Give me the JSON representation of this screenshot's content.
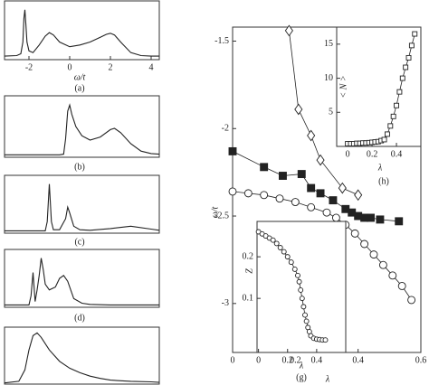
{
  "chart_data": [
    {
      "type": "line",
      "caption": "(a)",
      "xlabel": "ω/t",
      "xlim": [
        -3.2,
        4.4
      ],
      "ylim": [
        0,
        1
      ],
      "xticks": [
        -2,
        0,
        2,
        4
      ],
      "color": "#222",
      "x": [
        -3.2,
        -2.6,
        -2.4,
        -2.3,
        -2.25,
        -2.2,
        -2.15,
        -2.1,
        -2.0,
        -1.8,
        -1.5,
        -1.2,
        -1.0,
        -0.8,
        -0.5,
        0,
        0.5,
        1.0,
        1.5,
        1.8,
        2.0,
        2.2,
        2.5,
        3,
        3.5,
        4,
        4.4
      ],
      "values": [
        0.06,
        0.07,
        0.1,
        0.3,
        0.7,
        0.85,
        0.6,
        0.3,
        0.15,
        0.12,
        0.25,
        0.4,
        0.46,
        0.42,
        0.3,
        0.22,
        0.25,
        0.3,
        0.38,
        0.43,
        0.45,
        0.42,
        0.3,
        0.12,
        0.07,
        0.06,
        0.06
      ]
    },
    {
      "type": "line",
      "caption": "(b)",
      "xlim": [
        -3.2,
        4.4
      ],
      "ylim": [
        0,
        1
      ],
      "color": "#222",
      "x": [
        -3.2,
        -0.5,
        -0.3,
        -0.2,
        -0.1,
        0,
        0.1,
        0.3,
        0.6,
        1.0,
        1.5,
        2.0,
        2.2,
        2.5,
        3.0,
        3.5,
        4.0,
        4.4
      ],
      "values": [
        0.04,
        0.04,
        0.05,
        0.3,
        0.75,
        0.85,
        0.7,
        0.5,
        0.35,
        0.28,
        0.33,
        0.45,
        0.47,
        0.4,
        0.22,
        0.1,
        0.06,
        0.05
      ]
    },
    {
      "type": "line",
      "caption": "(c)",
      "xlim": [
        -3.2,
        4.4
      ],
      "ylim": [
        0,
        1
      ],
      "color": "#222",
      "x": [
        -3.2,
        -1.2,
        -1.1,
        -1.0,
        -0.9,
        -0.8,
        -0.5,
        -0.2,
        -0.1,
        0,
        0.2,
        0.5,
        1.0,
        2,
        3,
        4,
        4.4
      ],
      "values": [
        0.04,
        0.04,
        0.2,
        0.85,
        0.2,
        0.06,
        0.06,
        0.25,
        0.45,
        0.35,
        0.12,
        0.06,
        0.05,
        0.08,
        0.12,
        0.07,
        0.05
      ]
    },
    {
      "type": "line",
      "caption": "(d)",
      "xlim": [
        -3.2,
        4.4
      ],
      "ylim": [
        0,
        1
      ],
      "color": "#222",
      "x": [
        -3.2,
        -2.0,
        -1.9,
        -1.8,
        -1.7,
        -1.6,
        -1.5,
        -1.4,
        -1.3,
        -1.2,
        -1.0,
        -0.7,
        -0.5,
        -0.3,
        -0.1,
        0.2,
        0.6,
        1,
        2,
        3,
        4.4
      ],
      "values": [
        0.04,
        0.04,
        0.2,
        0.6,
        0.1,
        0.3,
        0.55,
        0.85,
        0.65,
        0.4,
        0.3,
        0.35,
        0.5,
        0.55,
        0.45,
        0.15,
        0.07,
        0.05,
        0.04,
        0.04,
        0.04
      ]
    },
    {
      "type": "line",
      "xlim": [
        -3.2,
        4.4
      ],
      "ylim": [
        0,
        1
      ],
      "color": "#222",
      "x": [
        -3.2,
        -2.5,
        -2.2,
        -2.0,
        -1.8,
        -1.6,
        -1.4,
        -1.0,
        -0.5,
        0,
        0.5,
        1,
        1.5,
        2,
        3,
        4,
        4.4
      ],
      "values": [
        0.02,
        0.05,
        0.25,
        0.6,
        0.85,
        0.9,
        0.82,
        0.6,
        0.4,
        0.28,
        0.2,
        0.14,
        0.1,
        0.07,
        0.05,
        0.04,
        0.03
      ]
    },
    {
      "type": "scatter",
      "xlabel": "λ",
      "ylabel": "ω/t",
      "xlim": [
        0,
        0.6
      ],
      "ylim": [
        -3.28,
        -1.42
      ],
      "xticks": [
        0,
        0.2,
        0.4,
        0.6
      ],
      "yticks": [
        -1.5,
        -2,
        -2.5,
        -3
      ],
      "series": [
        {
          "marker": "diamond",
          "filled": false,
          "color": "#222",
          "x": [
            0.18,
            0.21,
            0.25,
            0.28,
            0.35,
            0.4
          ],
          "values": [
            -1.44,
            -1.89,
            -2.04,
            -2.18,
            -2.34,
            -2.38
          ]
        },
        {
          "marker": "square",
          "filled": true,
          "color": "#222",
          "x": [
            0,
            0.1,
            0.16,
            0.22,
            0.25,
            0.28,
            0.32,
            0.36,
            0.38,
            0.4,
            0.42,
            0.44,
            0.47,
            0.53
          ],
          "values": [
            -2.13,
            -2.22,
            -2.27,
            -2.26,
            -2.34,
            -2.37,
            -2.41,
            -2.46,
            -2.48,
            -2.5,
            -2.51,
            -2.51,
            -2.52,
            -2.53
          ]
        },
        {
          "marker": "circle",
          "filled": false,
          "color": "#222",
          "x": [
            0,
            0.05,
            0.1,
            0.15,
            0.2,
            0.25,
            0.3,
            0.33,
            0.36,
            0.39,
            0.42,
            0.45,
            0.48,
            0.51,
            0.54,
            0.57
          ],
          "values": [
            -2.36,
            -2.37,
            -2.38,
            -2.4,
            -2.42,
            -2.45,
            -2.48,
            -2.51,
            -2.55,
            -2.6,
            -2.66,
            -2.72,
            -2.78,
            -2.84,
            -2.9,
            -2.98
          ]
        }
      ]
    },
    {
      "type": "scatter",
      "caption": "(h)",
      "xlabel": "λ",
      "ylabel": "< N >",
      "xlim": [
        -0.09,
        0.6
      ],
      "ylim": [
        0,
        17.5
      ],
      "xticks": [
        0,
        0.2,
        0.4
      ],
      "yticks": [
        5,
        10,
        15
      ],
      "series": [
        {
          "marker": "square",
          "filled": false,
          "color": "#222",
          "x": [
            0,
            0.025,
            0.05,
            0.075,
            0.1,
            0.125,
            0.15,
            0.175,
            0.2,
            0.225,
            0.25,
            0.275,
            0.3,
            0.325,
            0.35,
            0.375,
            0.4,
            0.425,
            0.45,
            0.475,
            0.5,
            0.525,
            0.55
          ],
          "values": [
            0.4,
            0.4,
            0.4,
            0.45,
            0.45,
            0.5,
            0.5,
            0.55,
            0.6,
            0.65,
            0.7,
            0.85,
            1,
            1.8,
            3,
            4.4,
            6,
            8,
            10,
            11.6,
            13,
            14.8,
            16.5
          ]
        }
      ]
    },
    {
      "type": "scatter",
      "caption": "(g)",
      "xlabel": "λ",
      "ylabel": "Z",
      "xlim": [
        -0.01,
        0.6
      ],
      "ylim": [
        -0.03,
        0.285
      ],
      "xticks": [
        0,
        0.2,
        0.4
      ],
      "yticks": [
        0.1,
        0.2
      ],
      "series": [
        {
          "marker": "circle",
          "filled": false,
          "color": "#222",
          "x": [
            0,
            0.025,
            0.05,
            0.075,
            0.1,
            0.125,
            0.15,
            0.175,
            0.2,
            0.225,
            0.25,
            0.27,
            0.28,
            0.29,
            0.3,
            0.31,
            0.32,
            0.33,
            0.34,
            0.35,
            0.36,
            0.38,
            0.4,
            0.42,
            0.44,
            0.46
          ],
          "values": [
            0.26,
            0.255,
            0.25,
            0.245,
            0.24,
            0.232,
            0.222,
            0.212,
            0.2,
            0.187,
            0.17,
            0.155,
            0.14,
            0.12,
            0.1,
            0.08,
            0.06,
            0.045,
            0.03,
            0.02,
            0.01,
            0.004,
            0.002,
            0.001,
            0,
            0
          ]
        }
      ]
    }
  ]
}
